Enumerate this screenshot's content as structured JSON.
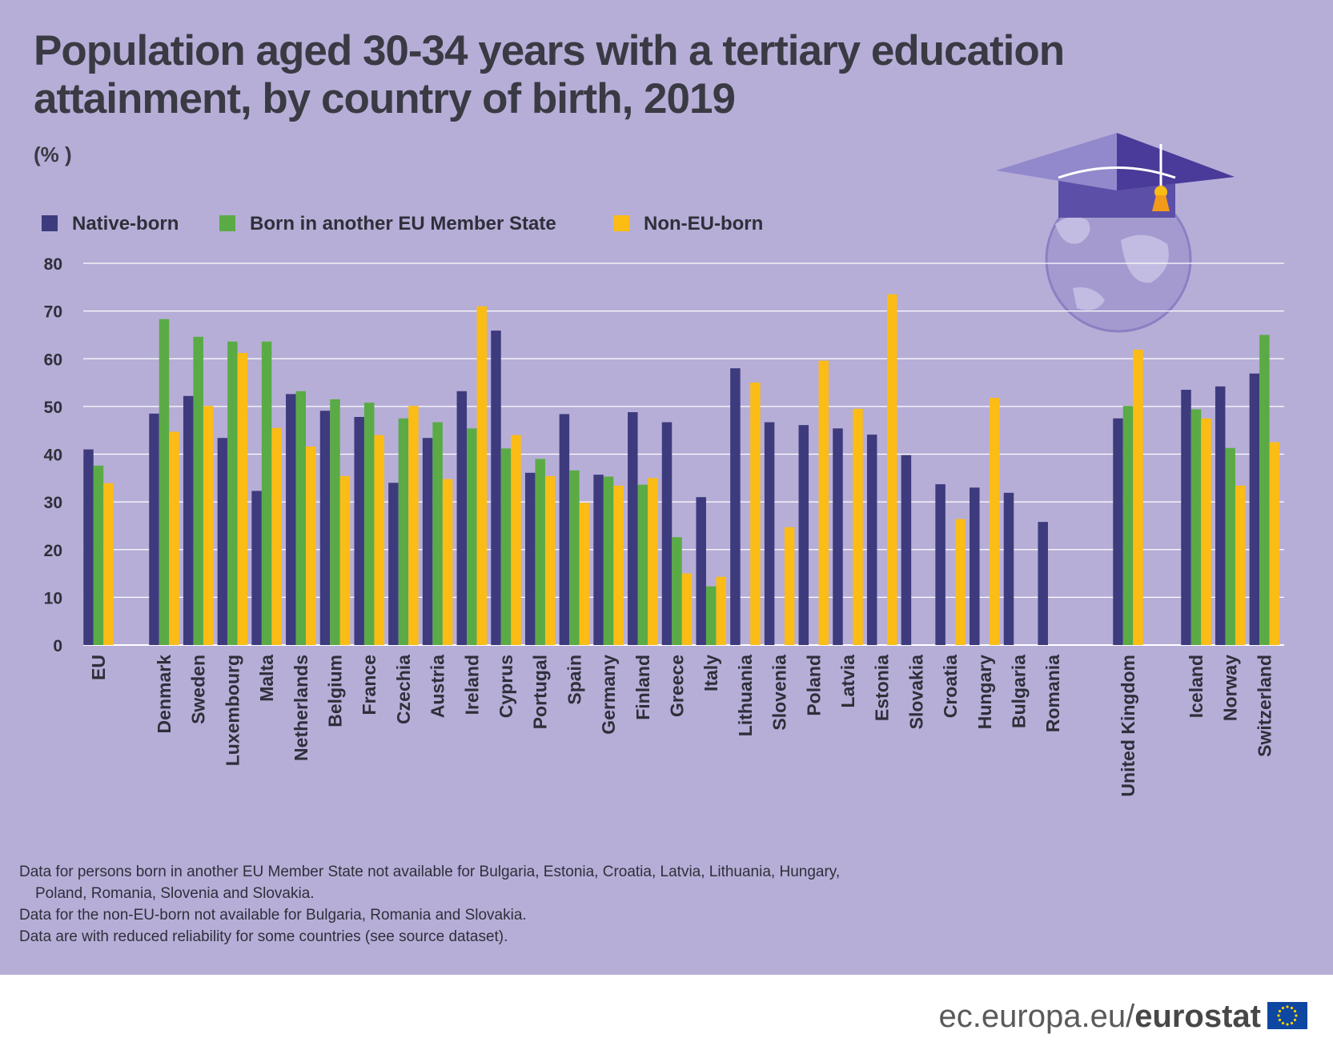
{
  "header": {
    "title": "Population aged 30-34 years with a tertiary education attainment, by country of birth, 2019",
    "unit": "(% )"
  },
  "colors": {
    "background": "#b6aed7",
    "native": "#3d3b7d",
    "eu_born": "#5aab45",
    "non_eu": "#fbbc15",
    "gridline": "#ffffff",
    "text": "#3a3a44"
  },
  "legend": [
    {
      "label": "Native-born",
      "color": "#3d3b7d"
    },
    {
      "label": "Born in another EU Member State",
      "color": "#5aab45"
    },
    {
      "label": "Non-EU-born",
      "color": "#fbbc15"
    }
  ],
  "chart_data": {
    "type": "bar",
    "title": "Population aged 30-34 years with a tertiary education attainment, by country of birth, 2019",
    "ylabel": "(% )",
    "ylim": [
      0,
      80
    ],
    "yticks": [
      0,
      10,
      20,
      30,
      40,
      50,
      60,
      70,
      80
    ],
    "grid": true,
    "legend_position": "top-left",
    "categories": [
      "EU",
      "Denmark",
      "Sweden",
      "Luxembourg",
      "Malta",
      "Netherlands",
      "Belgium",
      "France",
      "Czechia",
      "Austria",
      "Ireland",
      "Cyprus",
      "Portugal",
      "Spain",
      "Germany",
      "Finland",
      "Greece",
      "Italy",
      "Lithuania",
      "Slovenia",
      "Poland",
      "Latvia",
      "Estonia",
      "Slovakia",
      "Croatia",
      "Hungary",
      "Bulgaria",
      "Romania",
      "United Kingdom",
      "Iceland",
      "Norway",
      "Switzerland"
    ],
    "series": [
      {
        "name": "Native-born",
        "color": "#3d3b7d",
        "values": [
          41,
          48.5,
          52.2,
          43.4,
          32.3,
          52.6,
          49.1,
          47.8,
          34.0,
          43.4,
          53.2,
          65.9,
          36.1,
          48.4,
          35.7,
          48.8,
          46.7,
          31.0,
          58.0,
          46.7,
          46.1,
          45.4,
          44.1,
          39.8,
          33.7,
          33.0,
          31.9,
          25.8,
          47.5,
          53.5,
          54.2,
          56.9
        ]
      },
      {
        "name": "Born in another EU Member State",
        "color": "#5aab45",
        "values": [
          37.6,
          68.3,
          64.6,
          63.6,
          63.6,
          53.2,
          51.5,
          50.8,
          47.5,
          46.7,
          45.4,
          41.2,
          39.0,
          36.6,
          35.3,
          33.6,
          22.6,
          12.3,
          null,
          null,
          null,
          null,
          null,
          null,
          null,
          null,
          null,
          null,
          50.1,
          49.4,
          41.3,
          65.0
        ]
      },
      {
        "name": "Non-EU-born",
        "color": "#fbbc15",
        "values": [
          33.9,
          44.7,
          50.1,
          61.2,
          45.5,
          41.6,
          35.4,
          44.0,
          50.1,
          34.8,
          71.0,
          44.0,
          35.4,
          29.8,
          33.4,
          35.0,
          15.0,
          14.3,
          55.0,
          24.7,
          59.6,
          49.5,
          73.5,
          null,
          26.4,
          51.8,
          null,
          null,
          61.9,
          47.5,
          33.4,
          42.5
        ]
      }
    ]
  },
  "notes": [
    "Data for persons born in another EU Member State not available for Bulgaria, Estonia, Croatia, Latvia, Lithuania, Hungary,",
    "Poland, Romania, Slovenia and Slovakia.",
    "Data for the non-EU-born not available for Bulgaria, Romania and Slovakia.",
    "Data are with reduced reliability for some countries (see source dataset)."
  ],
  "footer": {
    "url_prefix": "ec.europa.eu/",
    "url_brand": "eurostat"
  },
  "logo": {
    "icon": "graduation-cap-globe-icon",
    "flag_icon": "eu-flag-icon"
  }
}
